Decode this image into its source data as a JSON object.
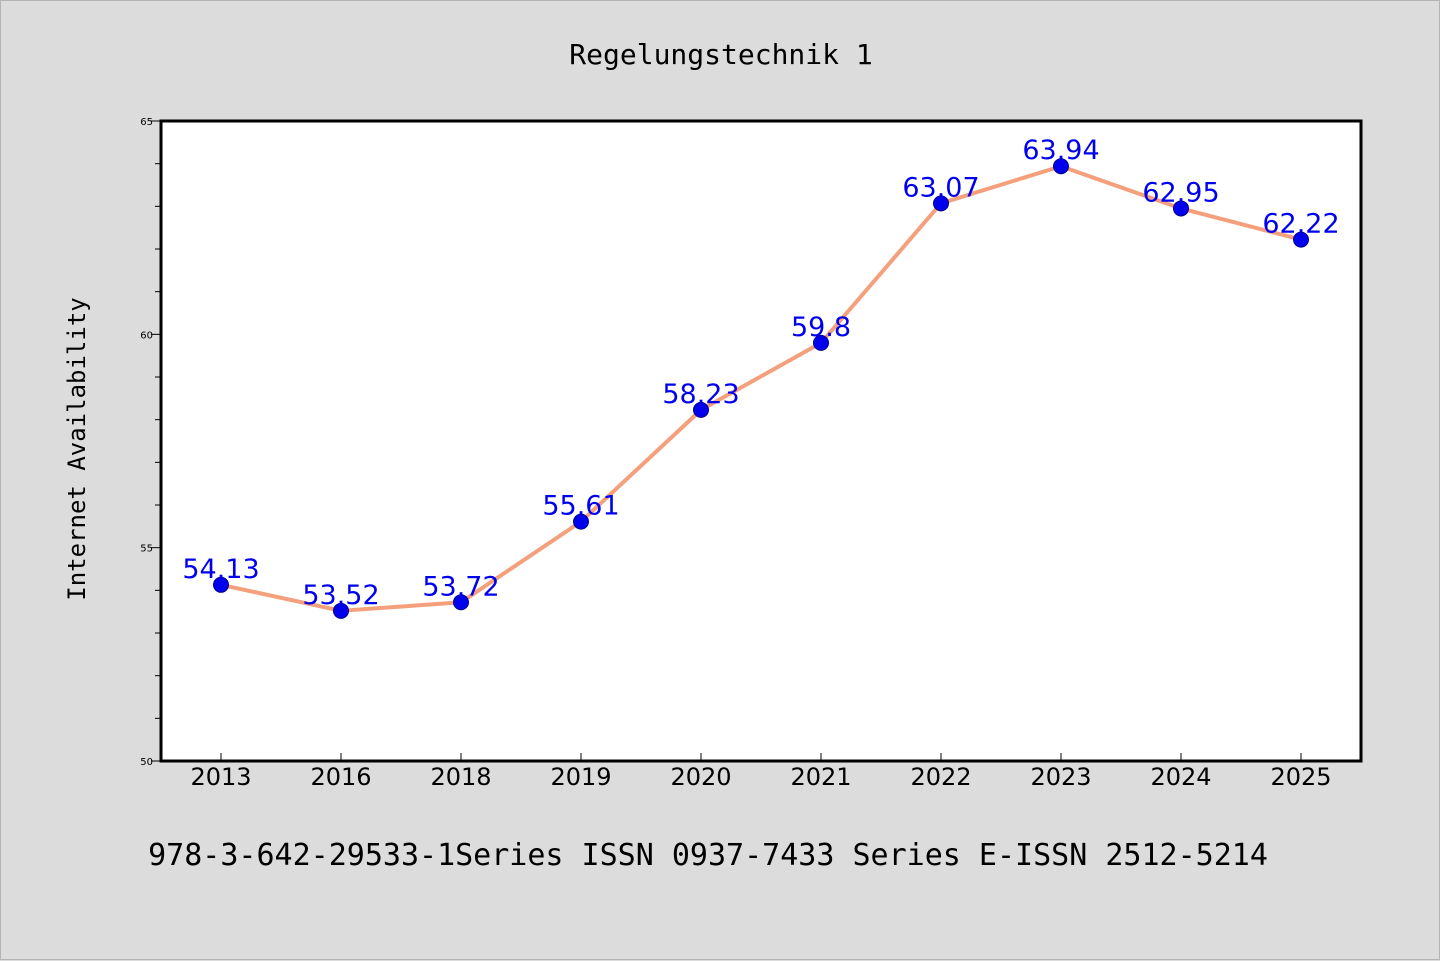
{
  "chart_data": {
    "type": "line",
    "title": "Regelungstechnik 1",
    "xlabel": "",
    "ylabel": "Internet Availability",
    "categories": [
      "2013",
      "2016",
      "2018",
      "2019",
      "2020",
      "2021",
      "2022",
      "2023",
      "2024",
      "2025"
    ],
    "series": [
      {
        "values": [
          54.13,
          53.52,
          53.72,
          55.61,
          58.23,
          59.8,
          63.07,
          63.94,
          62.95,
          62.22
        ],
        "labels": [
          "54.13",
          "53.52",
          "53.72",
          "55.61",
          "58.23",
          "59.8",
          "63.07",
          "63.94",
          "62.95",
          "62.22"
        ],
        "line_color": "#f5a07c",
        "marker_color": "#0000ee",
        "label_color": "#0000ee"
      }
    ],
    "ylim": [
      50,
      65
    ],
    "yticks": [
      "50",
      "55",
      "60",
      "65"
    ],
    "grid": false,
    "legend": "none"
  },
  "footer": {
    "text": "978-3-642-29533-1Series ISSN 0937-7433 Series E-ISSN 2512-5214"
  },
  "colors": {
    "background": "#dcdcdc",
    "plot_background": "#ffffff",
    "axis": "#000000"
  }
}
